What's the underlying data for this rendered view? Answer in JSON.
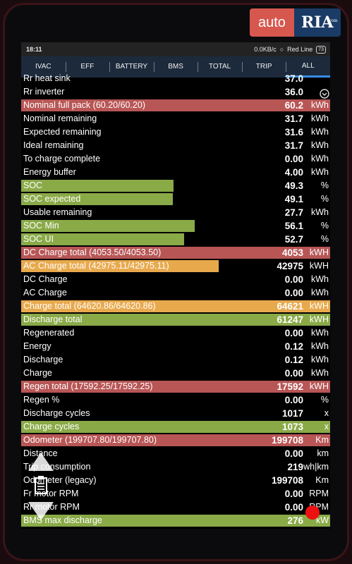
{
  "watermark": {
    "left": "auto",
    "right": "RIA",
    "suffix": ".com"
  },
  "status_bar": {
    "time": "18:11",
    "net": "0.0KB/c",
    "operator": "Red Line",
    "battery": "73"
  },
  "tabs": [
    {
      "label": "IVAC",
      "active": false
    },
    {
      "label": "EFF",
      "active": false
    },
    {
      "label": "BATTERY",
      "active": false
    },
    {
      "label": "BMS",
      "active": false
    },
    {
      "label": "TOTAL",
      "active": false
    },
    {
      "label": "TRIP",
      "active": false
    },
    {
      "label": "ALL",
      "active": true
    }
  ],
  "colors": {
    "red": "#b85656",
    "orange": "#e8a94d",
    "green": "#8aaa48",
    "tab_bg": "#1c2a3c",
    "accent": "#3a8ee6"
  },
  "rows": [
    {
      "name": "Rr heat sink",
      "value": "37.0",
      "unit": "",
      "bar_color": "",
      "bar_fill": 0
    },
    {
      "name": "Rr inverter",
      "value": "36.0",
      "unit": "",
      "bar_color": "",
      "bar_fill": 0
    },
    {
      "name": "Nominal full pack (60.20/60.20)",
      "value": "60.2",
      "unit": "kWh",
      "bar_color": "red",
      "bar_fill": 1.0
    },
    {
      "name": "Nominal remaining",
      "value": "31.7",
      "unit": "kWh",
      "bar_color": "",
      "bar_fill": 0
    },
    {
      "name": "Expected remaining",
      "value": "31.6",
      "unit": "kWh",
      "bar_color": "",
      "bar_fill": 0
    },
    {
      "name": "Ideal remaining",
      "value": "31.7",
      "unit": "kWh",
      "bar_color": "",
      "bar_fill": 0
    },
    {
      "name": "To charge complete",
      "value": "0.00",
      "unit": "kWh",
      "bar_color": "",
      "bar_fill": 0
    },
    {
      "name": "Energy buffer",
      "value": "4.00",
      "unit": "kWh",
      "bar_color": "",
      "bar_fill": 0
    },
    {
      "name": "SOC",
      "value": "49.3",
      "unit": "%",
      "bar_color": "green",
      "bar_fill": 0.493
    },
    {
      "name": "SOC expected",
      "value": "49.1",
      "unit": "%",
      "bar_color": "green",
      "bar_fill": 0.491
    },
    {
      "name": "Usable remaining",
      "value": "27.7",
      "unit": "kWh",
      "bar_color": "",
      "bar_fill": 0
    },
    {
      "name": "SOC Min",
      "value": "56.1",
      "unit": "%",
      "bar_color": "green",
      "bar_fill": 0.561
    },
    {
      "name": "SOC UI",
      "value": "52.7",
      "unit": "%",
      "bar_color": "green",
      "bar_fill": 0.527
    },
    {
      "name": "DC Charge total (4053.50/4053.50)",
      "value": "4053",
      "unit": "kWH",
      "bar_color": "red",
      "bar_fill": 1.0
    },
    {
      "name": "AC Charge total (42975.11/42975.11)",
      "value": "42975",
      "unit": "kWH",
      "bar_color": "orange",
      "bar_fill": 0.64
    },
    {
      "name": "DC Charge",
      "value": "0.00",
      "unit": "kWh",
      "bar_color": "",
      "bar_fill": 0
    },
    {
      "name": "AC Charge",
      "value": "0.00",
      "unit": "kWh",
      "bar_color": "",
      "bar_fill": 0
    },
    {
      "name": "Charge total (64620.86/64620.86)",
      "value": "64621",
      "unit": "kWH",
      "bar_color": "orange",
      "bar_fill": 1.0
    },
    {
      "name": "Discharge total",
      "value": "61247",
      "unit": "kWH",
      "bar_color": "green",
      "bar_fill": 1.0
    },
    {
      "name": "Regenerated",
      "value": "0.00",
      "unit": "kWh",
      "bar_color": "",
      "bar_fill": 0
    },
    {
      "name": "Energy",
      "value": "0.12",
      "unit": "kWh",
      "bar_color": "",
      "bar_fill": 0
    },
    {
      "name": "Discharge",
      "value": "0.12",
      "unit": "kWh",
      "bar_color": "",
      "bar_fill": 0
    },
    {
      "name": "Charge",
      "value": "0.00",
      "unit": "kWh",
      "bar_color": "",
      "bar_fill": 0
    },
    {
      "name": "Regen total (17592.25/17592.25)",
      "value": "17592",
      "unit": "kWH",
      "bar_color": "red",
      "bar_fill": 1.0
    },
    {
      "name": "Regen %",
      "value": "0.00",
      "unit": "%",
      "bar_color": "",
      "bar_fill": 0
    },
    {
      "name": "Discharge cycles",
      "value": "1017",
      "unit": "x",
      "bar_color": "",
      "bar_fill": 0
    },
    {
      "name": "Charge cycles",
      "value": "1073",
      "unit": "x",
      "bar_color": "green",
      "bar_fill": 1.0
    },
    {
      "name": "Odometer (199707.80/199707.80)",
      "value": "199708",
      "unit": "Km",
      "bar_color": "red",
      "bar_fill": 1.0
    },
    {
      "name": "Distance",
      "value": "0.00",
      "unit": "km",
      "bar_color": "",
      "bar_fill": 0
    },
    {
      "name": "Trip consumption",
      "value": "219",
      "unit": "wh|km",
      "bar_color": "",
      "bar_fill": 0
    },
    {
      "name": "Odometer (legacy)",
      "value": "199708",
      "unit": "Km",
      "bar_color": "",
      "bar_fill": 0
    },
    {
      "name": "Fr motor RPM",
      "value": "0.00",
      "unit": "RPM",
      "bar_color": "",
      "bar_fill": 0
    },
    {
      "name": "Rr motor RPM",
      "value": "0.00",
      "unit": "RPM",
      "bar_color": "",
      "bar_fill": 0
    },
    {
      "name": "BMS max discharge",
      "value": "276",
      "unit": "kW",
      "bar_color": "green",
      "bar_fill": 1.0
    }
  ]
}
